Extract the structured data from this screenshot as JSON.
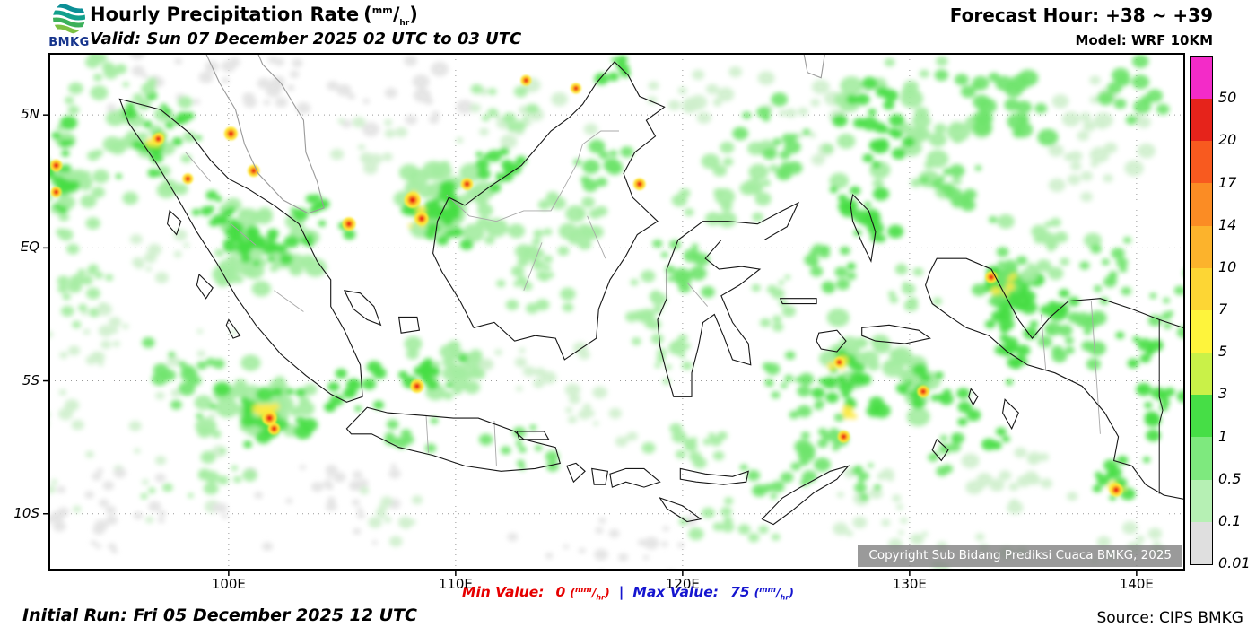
{
  "header": {
    "logo_text": "BMKG",
    "title": "Hourly Precipitation Rate",
    "valid": "Valid: Sun 07 December 2025 02 UTC to 03 UTC",
    "forecast_hour": "Forecast Hour: +38 ~ +39",
    "model": "Model: WRF 10KM"
  },
  "units": {
    "open": "(",
    "num": "mm",
    "slash": "/",
    "den": "hr",
    "close": ")"
  },
  "map": {
    "extent": {
      "lon_min": 92.1,
      "lon_max": 142.1,
      "lat_min": -12.1,
      "lat_max": 7.3
    },
    "lat_labels": [
      {
        "label": "5N",
        "lat": 5
      },
      {
        "label": "EQ",
        "lat": 0
      },
      {
        "label": "5S",
        "lat": -5
      },
      {
        "label": "10S",
        "lat": -10
      }
    ],
    "lon_labels": [
      {
        "label": "100E",
        "lon": 100
      },
      {
        "label": "110E",
        "lon": 110
      },
      {
        "label": "120E",
        "lon": 120
      },
      {
        "label": "130E",
        "lon": 130
      },
      {
        "label": "140E",
        "lon": 140
      }
    ],
    "copyright": "Copyright Sub Bidang Prediksi Cuaca BMKG, 2025"
  },
  "colorbar": {
    "labels": [
      "50",
      "20",
      "17",
      "14",
      "10",
      "7",
      "5",
      "3",
      "1",
      "0.5",
      "0.1",
      "0.01"
    ],
    "colors": [
      "#F32BC8",
      "#E6231B",
      "#F85A1F",
      "#FB8C24",
      "#FCB32C",
      "#FDD634",
      "#FEF43C",
      "#C9F148",
      "#46DE46",
      "#7EE97E",
      "#B6F0B4",
      "#DFDFDF"
    ]
  },
  "footer": {
    "min_label": "Min Value:",
    "min_value": "0",
    "sep": "|",
    "max_label": "Max Value:",
    "max_value": "75",
    "initial_run": "Initial Run: Fri 05 December 2025 12 UTC",
    "source": "Source: CIPS BMKG"
  },
  "precip": {
    "palette": {
      "gray": "#E2E2E2",
      "pale": "#CDEFCB",
      "lt": "#9FEB9C",
      "med": "#68E365",
      "grn": "#3EDC3B",
      "ylw": "#FDE838",
      "org": "#FBA224",
      "red": "#E82818"
    },
    "clusters": [
      [
        95,
        -6,
        6,
        5,
        40,
        "pale",
        6
      ],
      [
        94,
        -10,
        4,
        2.5,
        25,
        "gray",
        6
      ],
      [
        104,
        -9.5,
        5,
        2,
        20,
        "gray",
        5
      ],
      [
        98,
        6.5,
        5,
        2,
        22,
        "gray",
        6
      ],
      [
        103,
        6,
        3,
        1.5,
        12,
        "gray",
        6
      ],
      [
        108,
        6,
        4,
        2,
        14,
        "gray",
        7
      ],
      [
        113,
        5.5,
        4,
        2.5,
        16,
        "pale",
        7
      ],
      [
        118,
        -11,
        6,
        1.5,
        18,
        "gray",
        6
      ],
      [
        131,
        -11,
        5,
        1.5,
        15,
        "pale",
        6
      ],
      [
        125,
        5,
        4,
        3,
        20,
        "pale",
        7
      ],
      [
        96.5,
        4,
        2.5,
        2.5,
        30,
        "lt",
        8
      ],
      [
        96.8,
        4.2,
        2,
        2,
        22,
        "grn",
        6
      ],
      [
        93,
        3,
        1.8,
        3.5,
        30,
        "lt",
        8
      ],
      [
        92.6,
        2.8,
        1,
        2.5,
        18,
        "grn",
        7
      ],
      [
        93.5,
        -1.5,
        1.5,
        2.5,
        18,
        "lt",
        7
      ],
      [
        101.5,
        0,
        2.5,
        2,
        40,
        "lt",
        9
      ],
      [
        101.3,
        0.2,
        1.8,
        1.4,
        26,
        "grn",
        7
      ],
      [
        104,
        1,
        1.5,
        1.2,
        14,
        "grn",
        6
      ],
      [
        99.5,
        1.5,
        1.2,
        1,
        10,
        "grn",
        6
      ],
      [
        101,
        -5.8,
        3,
        1.8,
        36,
        "lt",
        9
      ],
      [
        101.5,
        -6.2,
        2.2,
        1.2,
        22,
        "grn",
        7
      ],
      [
        98,
        -5,
        2,
        1.5,
        16,
        "med",
        7
      ],
      [
        105.5,
        -5.5,
        1.5,
        1.2,
        14,
        "grn",
        6
      ],
      [
        109.5,
        -4.5,
        2.5,
        1.5,
        26,
        "lt",
        8
      ],
      [
        109,
        -4.8,
        1.5,
        1,
        14,
        "grn",
        6
      ],
      [
        110,
        1.5,
        2.5,
        2,
        36,
        "lt",
        9
      ],
      [
        109.5,
        1.2,
        1.8,
        1.5,
        24,
        "grn",
        7
      ],
      [
        112,
        3,
        1.5,
        1.2,
        14,
        "grn",
        6
      ],
      [
        114.5,
        0.5,
        2.5,
        2,
        24,
        "lt",
        8
      ],
      [
        113.5,
        -1.5,
        2,
        1.5,
        16,
        "lt",
        7
      ],
      [
        116.5,
        3,
        1.5,
        1.5,
        12,
        "med",
        7
      ],
      [
        108,
        -7,
        1.5,
        0.8,
        10,
        "med",
        6
      ],
      [
        113,
        -7.5,
        2,
        1,
        12,
        "med",
        6
      ],
      [
        118.5,
        -2.5,
        1.5,
        2,
        16,
        "lt",
        7
      ],
      [
        120,
        -0.5,
        1.5,
        1.5,
        14,
        "med",
        7
      ],
      [
        122,
        2.5,
        2.5,
        2,
        22,
        "lt",
        8
      ],
      [
        124,
        4.5,
        2,
        2,
        16,
        "med",
        7
      ],
      [
        130,
        4.5,
        4,
        3,
        40,
        "lt",
        9
      ],
      [
        129,
        5,
        2.5,
        2,
        22,
        "grn",
        7
      ],
      [
        134,
        5.5,
        3,
        2,
        22,
        "med",
        8
      ],
      [
        138.5,
        4,
        3,
        3,
        26,
        "pale",
        8
      ],
      [
        140,
        6,
        2,
        1.5,
        12,
        "med",
        7
      ],
      [
        128,
        1,
        2,
        2,
        22,
        "grn",
        7
      ],
      [
        126.5,
        -1,
        1.5,
        1.5,
        12,
        "med",
        6
      ],
      [
        128.5,
        -4.5,
        3,
        2,
        34,
        "lt",
        9
      ],
      [
        127.5,
        -5,
        2,
        1.5,
        20,
        "grn",
        7
      ],
      [
        130.5,
        -5.5,
        1.5,
        1.2,
        14,
        "grn",
        6
      ],
      [
        126,
        -7,
        2,
        1.5,
        16,
        "med",
        7
      ],
      [
        124.5,
        -5,
        1.5,
        1.5,
        12,
        "med",
        6
      ],
      [
        135,
        -2,
        2.5,
        2,
        30,
        "grn",
        8
      ],
      [
        134,
        -1,
        1.5,
        1.5,
        16,
        "med",
        7
      ],
      [
        137.5,
        -3,
        2,
        1.5,
        16,
        "med",
        7
      ],
      [
        134.5,
        -4,
        1.5,
        1.5,
        14,
        "grn",
        6
      ],
      [
        140.5,
        -5.5,
        1.8,
        2.5,
        20,
        "grn",
        7
      ],
      [
        141.5,
        -2,
        1.2,
        1.5,
        10,
        "med",
        6
      ],
      [
        139,
        -8.8,
        1.5,
        1,
        12,
        "grn",
        6
      ],
      [
        135,
        -9,
        3,
        1.5,
        18,
        "pale",
        7
      ],
      [
        129,
        -9.5,
        2.5,
        1.5,
        14,
        "pale",
        6
      ],
      [
        124,
        -8.5,
        2,
        1,
        12,
        "med",
        6
      ],
      [
        120,
        -7.5,
        2.5,
        1.2,
        14,
        "lt",
        6
      ],
      [
        99,
        -8.5,
        3,
        1.5,
        14,
        "lt",
        6
      ],
      [
        107,
        -10,
        3,
        1.5,
        12,
        "pale",
        6
      ],
      [
        124,
        -2,
        1.5,
        1.2,
        10,
        "lt",
        6
      ],
      [
        120,
        5.5,
        2,
        1.5,
        12,
        "pale",
        7
      ],
      [
        117,
        6.8,
        1.5,
        0.8,
        8,
        "grn",
        6
      ],
      [
        119.5,
        -4.5,
        1.2,
        1.2,
        10,
        "lt",
        6
      ],
      [
        114,
        -5,
        3,
        1.5,
        14,
        "pale",
        6
      ],
      [
        101.8,
        -6.3,
        0.8,
        0.5,
        6,
        "ylw",
        5
      ],
      [
        108.3,
        1.5,
        0.5,
        0.9,
        6,
        "ylw",
        5
      ],
      [
        96.9,
        4.1,
        0.5,
        0.5,
        4,
        "ylw",
        4
      ],
      [
        134.2,
        -1.3,
        0.6,
        0.6,
        5,
        "ylw",
        4
      ],
      [
        127.2,
        -6.3,
        0.5,
        0.5,
        4,
        "ylw",
        4
      ],
      [
        139,
        -8.9,
        0.5,
        0.4,
        4,
        "ylw",
        4
      ],
      [
        126.9,
        -4.3,
        0.5,
        0.4,
        4,
        "ylw",
        4
      ],
      [
        106,
        4,
        2.5,
        1.5,
        12,
        "pale",
        6
      ],
      [
        95,
        6.5,
        2,
        1,
        10,
        "lt",
        6
      ],
      [
        116,
        -6.5,
        2,
        1,
        10,
        "pale",
        5
      ],
      [
        122,
        -10.5,
        3,
        1.2,
        12,
        "lt",
        6
      ],
      [
        112,
        5,
        2,
        1.5,
        12,
        "lt",
        6
      ],
      [
        136,
        0.5,
        2.5,
        2,
        16,
        "lt",
        7
      ],
      [
        139,
        -0.5,
        2,
        1.5,
        12,
        "med",
        6
      ],
      [
        132,
        2,
        2,
        1.5,
        14,
        "med",
        7
      ],
      [
        130,
        -1.5,
        1.5,
        1.2,
        10,
        "lt",
        6
      ],
      [
        133,
        -6.5,
        1.5,
        1.2,
        10,
        "grn",
        6
      ],
      [
        131.5,
        -7.5,
        1.5,
        1,
        8,
        "med",
        5
      ],
      [
        128,
        -8.5,
        1.5,
        1,
        8,
        "med",
        5
      ],
      [
        139,
        -11,
        2.5,
        1,
        10,
        "pale",
        6
      ],
      [
        97,
        0,
        1.5,
        1.5,
        10,
        "pale",
        6
      ],
      [
        94.5,
        -3.5,
        1.5,
        1.5,
        8,
        "pale",
        6
      ],
      [
        105.5,
        -8.5,
        2,
        1,
        8,
        "gray",
        5
      ]
    ],
    "hotspots": [
      [
        100.1,
        4.3,
        1.0
      ],
      [
        101.1,
        2.9,
        0.9
      ],
      [
        92.4,
        3.1,
        0.9
      ],
      [
        92.4,
        2.1,
        0.8
      ],
      [
        105.3,
        0.9,
        1.0
      ],
      [
        108.1,
        1.8,
        1.2
      ],
      [
        108.5,
        1.1,
        1.0
      ],
      [
        110.5,
        2.4,
        0.9
      ],
      [
        113.1,
        6.3,
        0.8
      ],
      [
        115.3,
        6.0,
        0.8
      ],
      [
        118.1,
        2.4,
        0.9
      ],
      [
        108.3,
        -5.2,
        1.0
      ],
      [
        101.8,
        -6.4,
        1.1
      ],
      [
        102.0,
        -6.8,
        0.9
      ],
      [
        130.6,
        -5.4,
        0.9
      ],
      [
        127.1,
        -7.1,
        0.9
      ],
      [
        133.6,
        -1.1,
        0.9
      ],
      [
        139.1,
        -9.1,
        1.0
      ],
      [
        126.9,
        -4.3,
        0.8
      ],
      [
        96.9,
        4.1,
        0.9
      ],
      [
        98.2,
        2.6,
        0.8
      ]
    ]
  }
}
